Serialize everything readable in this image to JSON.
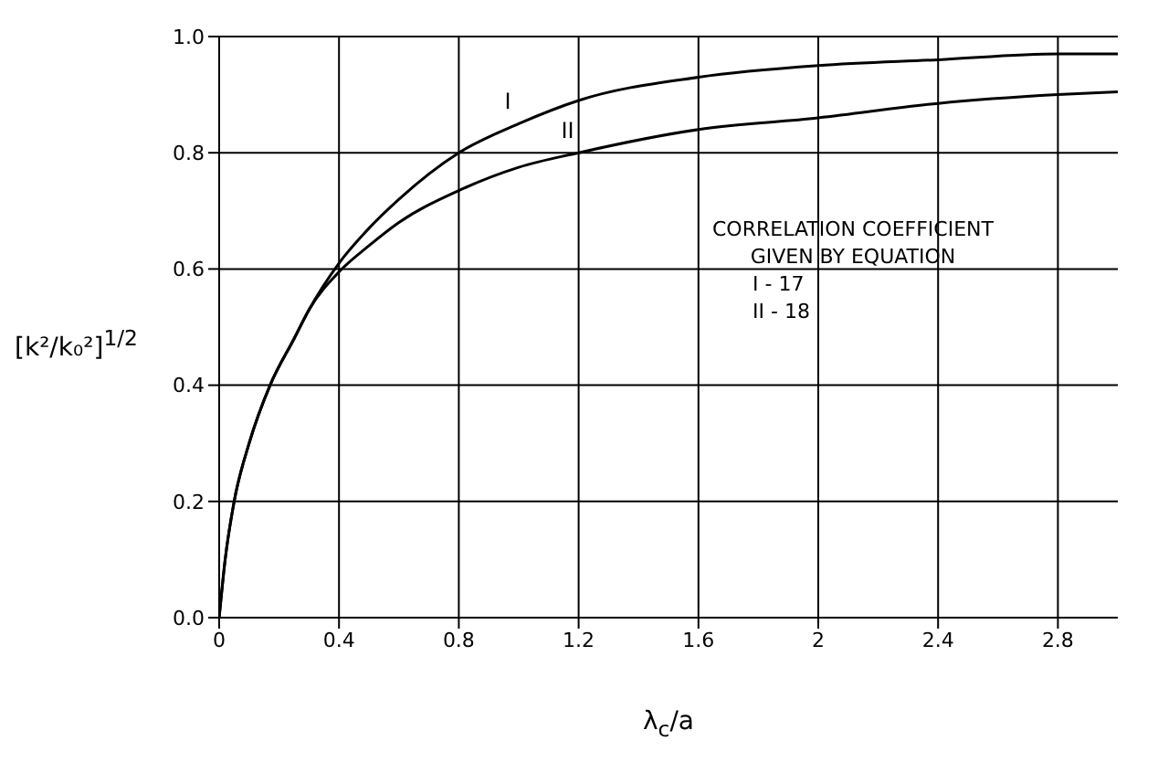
{
  "chart_data": {
    "type": "line",
    "xlabel": "λ$_{c}$/a",
    "ylabel": "[k²/k₀²]$^{1/2}$",
    "x": [
      0,
      0.02,
      0.05,
      0.1,
      0.17,
      0.25,
      0.3,
      0.4,
      0.5,
      0.6,
      0.8,
      1.0,
      1.2,
      1.6,
      2.0,
      2.4,
      2.8,
      3.0
    ],
    "series": [
      {
        "name": "I",
        "color": "#000000",
        "values": [
          0,
          0.1,
          0.2,
          0.3,
          0.4,
          0.48,
          0.53,
          0.61,
          0.67,
          0.72,
          0.8,
          0.85,
          0.89,
          0.93,
          0.95,
          0.96,
          0.97,
          0.97
        ]
      },
      {
        "name": "II",
        "color": "#000000",
        "values": [
          0,
          0.1,
          0.2,
          0.3,
          0.4,
          0.48,
          0.53,
          0.595,
          0.64,
          0.68,
          0.735,
          0.775,
          0.8,
          0.84,
          0.86,
          0.885,
          0.9,
          0.905
        ]
      }
    ],
    "xlim": [
      0,
      3.0
    ],
    "xticks": [
      0,
      0.4,
      0.8,
      1.2,
      1.6,
      2.0,
      2.4,
      2.8
    ],
    "ylim": [
      0,
      1.0
    ],
    "yticks": [
      {
        "value": 0,
        "label": "0.0"
      },
      0.2,
      0.4,
      0.6,
      0.8,
      {
        "value": 1.0,
        "label": "1.0"
      }
    ],
    "annotations": [
      "CORRELATION COEFFICIENT\nGIVEN BY EQUATION",
      "I - 17",
      "II - 18"
    ],
    "grid": true,
    "legend": false,
    "marker": "none",
    "line_style": "solid"
  }
}
